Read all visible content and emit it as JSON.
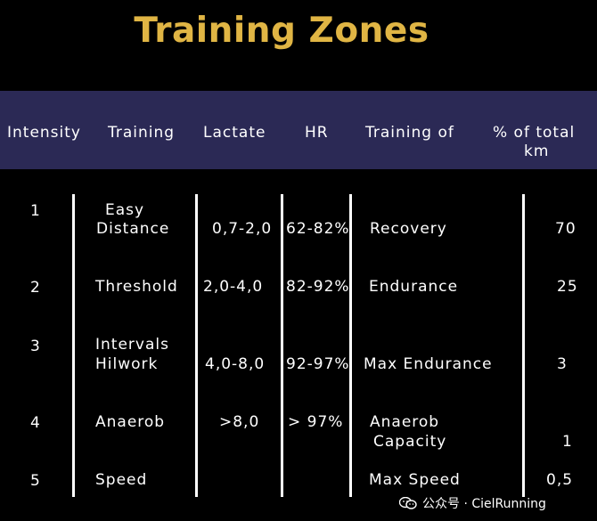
{
  "title": "Training Zones",
  "columns": {
    "intensity": "Intensity",
    "training": "Training",
    "lactate": "Lactate",
    "hr": "HR",
    "training_of": "Training of",
    "pct_line1": "% of total",
    "pct_line2": "km"
  },
  "rows": [
    {
      "intensity": "1",
      "training_l1": "Easy",
      "training_l2": "Distance",
      "lactate": "0,7-2,0",
      "hr": "62-82%",
      "training_of_l1": "Recovery",
      "training_of_l2": "",
      "pct": "70"
    },
    {
      "intensity": "2",
      "training_l1": "Threshold",
      "training_l2": "",
      "lactate": "2,0-4,0",
      "hr": "82-92%",
      "training_of_l1": "Endurance",
      "training_of_l2": "",
      "pct": "25"
    },
    {
      "intensity": "3",
      "training_l1": "Intervals",
      "training_l2": "Hilwork",
      "lactate": "4,0-8,0",
      "hr": "92-97%",
      "training_of_l1": "Max Endurance",
      "training_of_l2": "",
      "pct": "3"
    },
    {
      "intensity": "4",
      "training_l1": "Anaerob",
      "training_l2": "",
      "lactate": ">8,0",
      "hr": "> 97%",
      "training_of_l1": "Anaerob",
      "training_of_l2": "Capacity",
      "pct": "1"
    },
    {
      "intensity": "5",
      "training_l1": "Speed",
      "training_l2": "",
      "lactate": "",
      "hr": "",
      "training_of_l1": "Max Speed",
      "training_of_l2": "",
      "pct": "0,5"
    }
  ],
  "watermark": "公众号 · CielRunning",
  "icons": {
    "watermark_icon": "wechat-icon"
  },
  "colors": {
    "title": "#e0b544",
    "header_band": "#2b2955",
    "background": "#000000"
  }
}
